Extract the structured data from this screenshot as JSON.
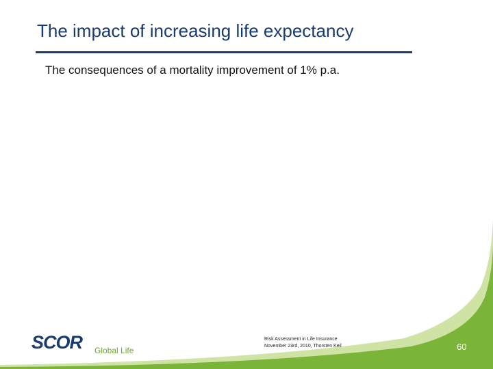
{
  "slide": {
    "title": "The impact of increasing life expectancy",
    "subtitle": "The consequences of a mortality improvement of 1% p.a."
  },
  "logo": {
    "wordmark": "SCOR",
    "tagline": "Global Life"
  },
  "footer": {
    "line1": "Risk Assessment in Life Insurance",
    "line2": "November 23rd, 2010, Thorsten Keil"
  },
  "page_number": "60",
  "colors": {
    "title_navy": "#1a3b6e",
    "brand_green": "#6aaa2c",
    "swoosh_light_green": "#cfe3a5"
  }
}
